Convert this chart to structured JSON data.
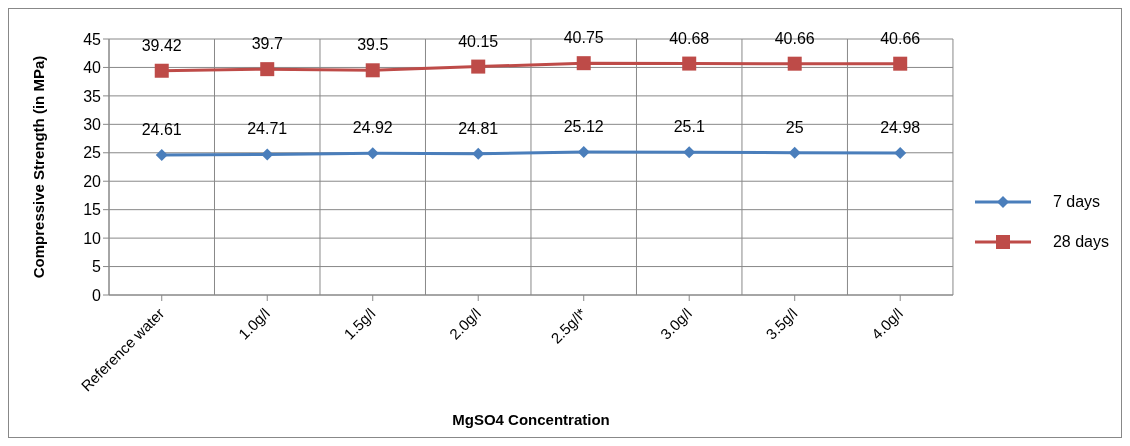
{
  "chart_data": {
    "type": "line",
    "xlabel": "MgSO4 Concentration",
    "ylabel": "Compressive Strength (in MPa)",
    "categories": [
      "Reference water",
      "1.0g/l",
      "1.5g/l",
      "2.0g/l",
      "2.5g/l*",
      "3.0g/l",
      "3.5g/l",
      "4.0g/l"
    ],
    "series": [
      {
        "name": "7 days",
        "color": "#4a7ebb",
        "marker": "diamond",
        "values": [
          24.61,
          24.71,
          24.92,
          24.81,
          25.12,
          25.1,
          25,
          24.98
        ]
      },
      {
        "name": "28 days",
        "color": "#be4b48",
        "marker": "square",
        "values": [
          39.42,
          39.7,
          39.5,
          40.15,
          40.75,
          40.68,
          40.66,
          40.66
        ]
      }
    ],
    "ylim": [
      0,
      45
    ],
    "yticks": [
      0,
      5,
      10,
      15,
      20,
      25,
      30,
      35,
      40,
      45
    ],
    "grid": true,
    "legend": "right",
    "data_labels": true
  }
}
